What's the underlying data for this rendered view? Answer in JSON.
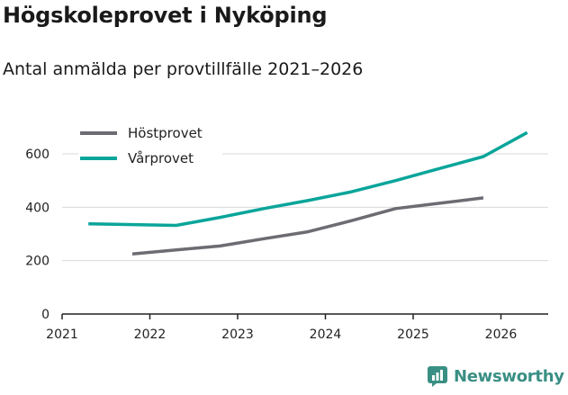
{
  "title": "Högskoleprovet i Nyköping",
  "subtitle": "Antal anmälda per provtillfälle 2021–2026",
  "brand": "Newsworthy",
  "colors": {
    "hostprovet": "#6e6b73",
    "varprovet": "#0aa59a",
    "brand": "#3a8f84"
  },
  "chart_data": {
    "type": "line",
    "title": "Högskoleprovet i Nyköping",
    "subtitle": "Antal anmälda per provtillfälle 2021–2026",
    "xlabel": "",
    "ylabel": "",
    "xlim": [
      2021,
      2026.55
    ],
    "ylim": [
      0,
      700
    ],
    "xticks": [
      2021,
      2022,
      2023,
      2024,
      2025,
      2026
    ],
    "xtick_labels": [
      "2021",
      "2022",
      "2023",
      "2024",
      "2025",
      "2026"
    ],
    "yticks": [
      0,
      200,
      400,
      600
    ],
    "ytick_labels": [
      "0",
      "200",
      "400",
      "600"
    ],
    "grid": true,
    "legend_position": "top-left",
    "series": [
      {
        "name": "Höstprovet",
        "x": [
          2021.8,
          2022.3,
          2022.8,
          2023.3,
          2023.8,
          2024.3,
          2024.8,
          2025.3,
          2025.8
        ],
        "values": [
          225,
          240,
          255,
          282,
          308,
          350,
          395,
          415,
          435
        ]
      },
      {
        "name": "Vårprovet",
        "x": [
          2021.3,
          2021.8,
          2022.3,
          2022.8,
          2023.3,
          2023.8,
          2024.3,
          2024.8,
          2025.3,
          2025.8,
          2026.3
        ],
        "values": [
          338,
          335,
          332,
          362,
          395,
          425,
          458,
          500,
          545,
          590,
          680
        ]
      }
    ]
  }
}
